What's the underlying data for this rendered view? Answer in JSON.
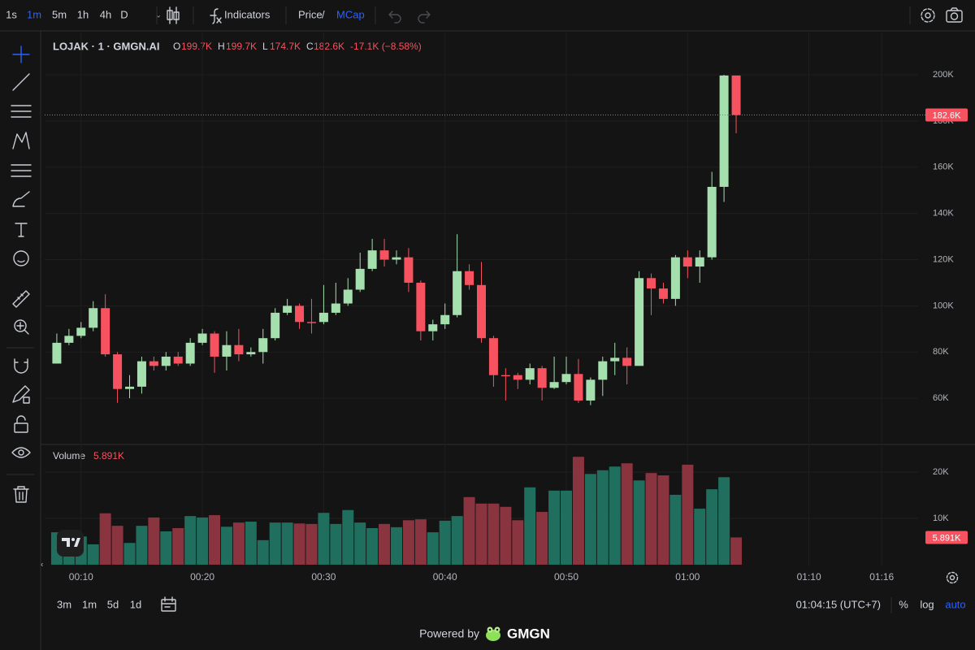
{
  "toolbar": {
    "intervals": [
      "1s",
      "1m",
      "5m",
      "1h",
      "4h",
      "D"
    ],
    "active_interval": 1,
    "indicators": "Indicators",
    "price": "Price",
    "slash": "/",
    "mcap": "MCap"
  },
  "legend": {
    "name": "LOJAK · 1 · GMGN.AI",
    "o": "O",
    "open": "199.7K",
    "h": "H",
    "high": "199.7K",
    "l": "L",
    "low": "174.7K",
    "c": "C",
    "close": "182.6K",
    "change": "-17.1K (−8.58%)"
  },
  "chart_data": [
    {
      "type": "candlestick",
      "x": [
        "00:08",
        "00:09",
        "00:10",
        "00:11",
        "00:12",
        "00:13",
        "00:14",
        "00:15",
        "00:16",
        "00:17",
        "00:18",
        "00:19",
        "00:20",
        "00:21",
        "00:22",
        "00:23",
        "00:24",
        "00:25",
        "00:26",
        "00:27",
        "00:28",
        "00:29",
        "00:30",
        "00:31",
        "00:32",
        "00:33",
        "00:34",
        "00:35",
        "00:36",
        "00:37",
        "00:38",
        "00:39",
        "00:40",
        "00:41",
        "00:42",
        "00:43",
        "00:44",
        "00:45",
        "00:46",
        "00:47",
        "00:48",
        "00:49",
        "00:50",
        "00:51",
        "00:52",
        "00:53",
        "00:54",
        "00:55",
        "00:56",
        "00:57",
        "00:58",
        "00:59",
        "01:00",
        "01:01",
        "01:02",
        "01:03",
        "01:04"
      ],
      "open": [
        75000,
        84000,
        87000,
        90500,
        99000,
        79000,
        64000,
        65000,
        76000,
        74000,
        78000,
        75000,
        84000,
        88000,
        78000,
        83000,
        79000,
        80000,
        86000,
        97000,
        100000,
        93000,
        93000,
        97000,
        101000,
        107000,
        116000,
        124000,
        120000,
        121000,
        110000,
        89000,
        92000,
        96000,
        115000,
        109000,
        86000,
        70000,
        70000,
        68000,
        73000,
        64500,
        67000,
        70500,
        59000,
        68000,
        76000,
        77500,
        74000,
        112000,
        107500,
        103000,
        121000,
        117000,
        121000,
        151500,
        199700
      ],
      "high": [
        88000,
        90000,
        93000,
        102000,
        105000,
        80000,
        70000,
        78000,
        78000,
        80000,
        80000,
        86000,
        90000,
        89000,
        89000,
        90000,
        82000,
        90000,
        99000,
        103000,
        101000,
        103000,
        109000,
        110000,
        112000,
        123000,
        129000,
        129000,
        124000,
        125000,
        111000,
        94000,
        101000,
        131000,
        118000,
        119000,
        87000,
        73000,
        71000,
        75000,
        74000,
        78000,
        78000,
        77000,
        69000,
        78000,
        84000,
        82000,
        115000,
        114000,
        110000,
        122000,
        124000,
        124000,
        158000,
        200000,
        199700
      ],
      "low": [
        75000,
        83000,
        86000,
        89000,
        78000,
        58000,
        60000,
        62000,
        72000,
        72000,
        74000,
        74000,
        83000,
        71000,
        72000,
        76000,
        78000,
        75000,
        85000,
        96000,
        90000,
        88000,
        92000,
        96000,
        100000,
        106000,
        115000,
        117000,
        118000,
        106000,
        85000,
        85000,
        90000,
        95000,
        107000,
        84000,
        65000,
        59000,
        64000,
        66000,
        59000,
        64000,
        66000,
        58000,
        57000,
        61000,
        70000,
        66000,
        74000,
        96000,
        101000,
        100000,
        112000,
        110000,
        120000,
        145000,
        174700
      ],
      "close": [
        84000,
        87000,
        90500,
        99000,
        79000,
        64000,
        65000,
        76000,
        74000,
        78000,
        75000,
        84000,
        88000,
        78000,
        83000,
        79000,
        80000,
        86000,
        97000,
        100000,
        93000,
        92500,
        97000,
        101000,
        107000,
        116000,
        124000,
        120000,
        121000,
        110000,
        89000,
        92000,
        96000,
        115000,
        109000,
        86000,
        70000,
        69500,
        68000,
        73000,
        64500,
        67000,
        70500,
        59000,
        68000,
        76000,
        77500,
        74000,
        112000,
        107500,
        103000,
        121000,
        117000,
        121000,
        151500,
        199700,
        182600
      ],
      "up_color": "#a5dfae",
      "down_color": "#f7525f",
      "xlim": [
        "00:07",
        "01:19"
      ],
      "xticks": [
        "00:10",
        "00:20",
        "00:30",
        "00:40",
        "00:50",
        "01:00",
        "01:10",
        "01:16"
      ],
      "ylim": [
        40700,
        215500
      ],
      "yticks": [
        {
          "value": 60000,
          "label": "60K"
        },
        {
          "value": 80000,
          "label": "80K"
        },
        {
          "value": 100000,
          "label": "100K"
        },
        {
          "value": 120000,
          "label": "120K"
        },
        {
          "value": 140000,
          "label": "140K"
        },
        {
          "value": 160000,
          "label": "160K"
        },
        {
          "value": 180000,
          "label": "180K"
        },
        {
          "value": 200000,
          "label": "200K"
        }
      ],
      "grid": true,
      "last_price": {
        "value": 182600,
        "label": "182.6K"
      }
    },
    {
      "type": "bar",
      "title": "Volume",
      "values": [
        7000,
        7000,
        6100,
        4400,
        11100,
        8400,
        4700,
        8400,
        10200,
        7200,
        7900,
        10500,
        10200,
        10700,
        8200,
        9100,
        9300,
        5300,
        9100,
        9100,
        8900,
        8800,
        11200,
        8800,
        11800,
        9100,
        7900,
        8800,
        8100,
        9600,
        9800,
        7000,
        9500,
        10500,
        14600,
        13200,
        13200,
        12500,
        9600,
        16700,
        11400,
        16000,
        16000,
        23300,
        19600,
        20400,
        21200,
        21900,
        18200,
        19800,
        19300,
        15100,
        21600,
        12100,
        16300,
        18900,
        5891
      ],
      "up_color": "#1f6e5e",
      "down_color": "#8a3440",
      "ylim": [
        -350,
        25800
      ],
      "yticks": [
        {
          "value": 10000,
          "label": "10K"
        },
        {
          "value": 20000,
          "label": "20K"
        }
      ],
      "current": {
        "value": 5891,
        "label": "5.891K"
      }
    }
  ],
  "footer": {
    "ranges": [
      "3m",
      "1m",
      "5d",
      "1d"
    ],
    "clock": "01:04:15 (UTC+7)",
    "percent": "%",
    "log": "log",
    "auto": "auto",
    "powered": "Powered by",
    "brand": "GMGN"
  }
}
